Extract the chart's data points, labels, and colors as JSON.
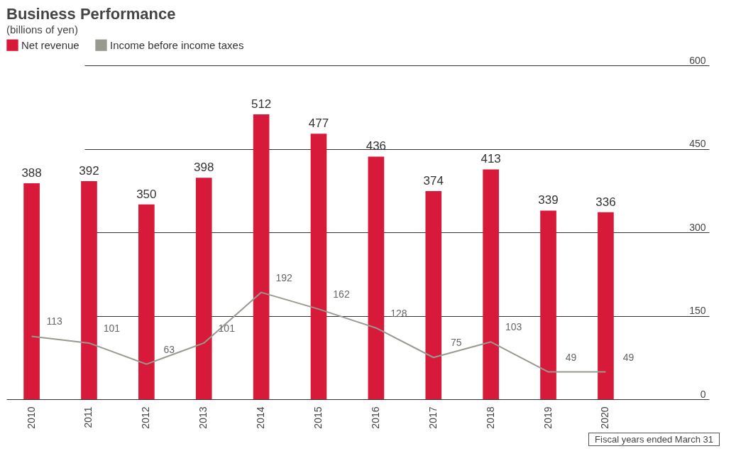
{
  "chart_data": {
    "type": "bar",
    "title": "Business Performance",
    "subtitle": "(billions of yen)",
    "categories": [
      "2010",
      "2011",
      "2012",
      "2013",
      "2014",
      "2015",
      "2016",
      "2017",
      "2018",
      "2019",
      "2020"
    ],
    "series": [
      {
        "name": "Net revenue",
        "color": "#d7193a",
        "values": [
          388,
          392,
          350,
          398,
          512,
          477,
          436,
          374,
          413,
          339,
          336
        ]
      },
      {
        "name": "Income before income taxes",
        "type": "line",
        "color": "#999990",
        "values": [
          113,
          101,
          63,
          101,
          192,
          162,
          128,
          75,
          103,
          49,
          49
        ]
      }
    ],
    "ylim": [
      0,
      600
    ],
    "yticks": [
      0,
      150,
      300,
      450,
      600
    ],
    "grid": "y",
    "legend": "top",
    "data_labels": true,
    "annotations": [
      "Fiscal years ended March 31"
    ]
  }
}
